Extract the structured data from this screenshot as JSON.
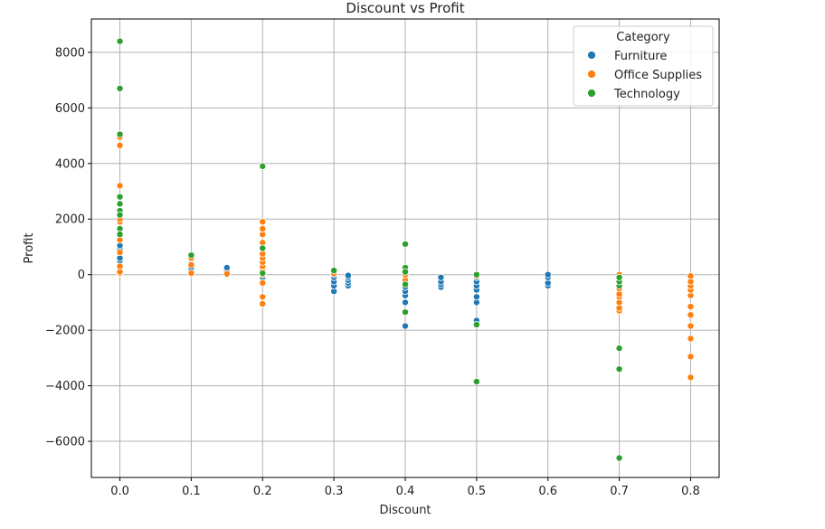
{
  "chart_data": {
    "type": "scatter",
    "title": "Discount vs Profit",
    "xlabel": "Discount",
    "ylabel": "Profit",
    "xlim": [
      -0.04,
      0.84
    ],
    "ylim": [
      -7300,
      9200
    ],
    "x_ticks": [
      "0.0",
      "0.1",
      "0.2",
      "0.3",
      "0.4",
      "0.5",
      "0.6",
      "0.7",
      "0.8"
    ],
    "x_tick_values": [
      0.0,
      0.1,
      0.2,
      0.3,
      0.4,
      0.5,
      0.6,
      0.7,
      0.8
    ],
    "y_ticks": [
      "8000",
      "6000",
      "4000",
      "2000",
      "0",
      "−2000",
      "−4000",
      "−6000"
    ],
    "y_tick_values": [
      8000,
      6000,
      4000,
      2000,
      0,
      -2000,
      -4000,
      -6000
    ],
    "grid": true,
    "legend": {
      "title": "Category",
      "placement": "top-right"
    },
    "series": [
      {
        "name": "Furniture",
        "color": "#1f77b4",
        "points": [
          [
            0.0,
            50
          ],
          [
            0.0,
            150
          ],
          [
            0.0,
            300
          ],
          [
            0.0,
            500
          ],
          [
            0.0,
            600
          ],
          [
            0.0,
            900
          ],
          [
            0.0,
            1050
          ],
          [
            0.0,
            1250
          ],
          [
            0.0,
            1400
          ],
          [
            0.1,
            30
          ],
          [
            0.1,
            80
          ],
          [
            0.1,
            150
          ],
          [
            0.1,
            250
          ],
          [
            0.1,
            350
          ],
          [
            0.1,
            450
          ],
          [
            0.1,
            550
          ],
          [
            0.15,
            0
          ],
          [
            0.15,
            50
          ],
          [
            0.15,
            100
          ],
          [
            0.15,
            150
          ],
          [
            0.15,
            250
          ],
          [
            0.2,
            -100
          ],
          [
            0.2,
            0
          ],
          [
            0.2,
            100
          ],
          [
            0.2,
            200
          ],
          [
            0.3,
            -600
          ],
          [
            0.3,
            -400
          ],
          [
            0.3,
            -250
          ],
          [
            0.3,
            -100
          ],
          [
            0.3,
            0
          ],
          [
            0.32,
            -400
          ],
          [
            0.32,
            -300
          ],
          [
            0.32,
            -200
          ],
          [
            0.32,
            -100
          ],
          [
            0.32,
            -30
          ],
          [
            0.4,
            -1850
          ],
          [
            0.4,
            -1000
          ],
          [
            0.4,
            -750
          ],
          [
            0.4,
            -600
          ],
          [
            0.4,
            -450
          ],
          [
            0.4,
            -300
          ],
          [
            0.4,
            -150
          ],
          [
            0.4,
            0
          ],
          [
            0.45,
            -450
          ],
          [
            0.45,
            -350
          ],
          [
            0.45,
            -250
          ],
          [
            0.45,
            -100
          ],
          [
            0.5,
            -1650
          ],
          [
            0.5,
            -1000
          ],
          [
            0.5,
            -800
          ],
          [
            0.5,
            -550
          ],
          [
            0.5,
            -400
          ],
          [
            0.5,
            -250
          ],
          [
            0.5,
            -100
          ],
          [
            0.6,
            -400
          ],
          [
            0.6,
            -300
          ],
          [
            0.6,
            -100
          ],
          [
            0.6,
            0
          ],
          [
            0.7,
            -450
          ],
          [
            0.7,
            -300
          ],
          [
            0.7,
            -150
          ],
          [
            0.8,
            -450
          ],
          [
            0.8,
            -300
          ],
          [
            0.8,
            -200
          ]
        ]
      },
      {
        "name": "Office Supplies",
        "color": "#ff7f0e",
        "points": [
          [
            0.0,
            50
          ],
          [
            0.0,
            100
          ],
          [
            0.0,
            300
          ],
          [
            0.0,
            800
          ],
          [
            0.0,
            1250
          ],
          [
            0.0,
            1600
          ],
          [
            0.0,
            1900
          ],
          [
            0.0,
            2000
          ],
          [
            0.0,
            3200
          ],
          [
            0.0,
            4650
          ],
          [
            0.0,
            4950
          ],
          [
            0.1,
            50
          ],
          [
            0.1,
            350
          ],
          [
            0.1,
            600
          ],
          [
            0.15,
            30
          ],
          [
            0.2,
            -1050
          ],
          [
            0.2,
            -800
          ],
          [
            0.2,
            -300
          ],
          [
            0.2,
            0
          ],
          [
            0.2,
            150
          ],
          [
            0.2,
            300
          ],
          [
            0.2,
            450
          ],
          [
            0.2,
            600
          ],
          [
            0.2,
            750
          ],
          [
            0.2,
            950
          ],
          [
            0.2,
            1150
          ],
          [
            0.2,
            1450
          ],
          [
            0.2,
            1650
          ],
          [
            0.2,
            1900
          ],
          [
            0.3,
            50
          ],
          [
            0.4,
            -200
          ],
          [
            0.4,
            0
          ],
          [
            0.5,
            -50
          ],
          [
            0.7,
            -1300
          ],
          [
            0.7,
            -1200
          ],
          [
            0.7,
            -1000
          ],
          [
            0.7,
            -800
          ],
          [
            0.7,
            -700
          ],
          [
            0.7,
            -500
          ],
          [
            0.7,
            -350
          ],
          [
            0.7,
            -200
          ],
          [
            0.7,
            0
          ],
          [
            0.8,
            -3700
          ],
          [
            0.8,
            -2950
          ],
          [
            0.8,
            -2300
          ],
          [
            0.8,
            -1850
          ],
          [
            0.8,
            -1450
          ],
          [
            0.8,
            -1150
          ],
          [
            0.8,
            -750
          ],
          [
            0.8,
            -550
          ],
          [
            0.8,
            -400
          ],
          [
            0.8,
            -250
          ],
          [
            0.8,
            -50
          ]
        ]
      },
      {
        "name": "Technology",
        "color": "#2ca02c",
        "points": [
          [
            0.0,
            8400
          ],
          [
            0.0,
            6700
          ],
          [
            0.0,
            5050
          ],
          [
            0.0,
            2800
          ],
          [
            0.0,
            2550
          ],
          [
            0.0,
            2300
          ],
          [
            0.0,
            2150
          ],
          [
            0.0,
            1650
          ],
          [
            0.0,
            1450
          ],
          [
            0.1,
            700
          ],
          [
            0.2,
            3900
          ],
          [
            0.2,
            950
          ],
          [
            0.2,
            50
          ],
          [
            0.3,
            150
          ],
          [
            0.4,
            1100
          ],
          [
            0.4,
            250
          ],
          [
            0.4,
            100
          ],
          [
            0.4,
            -350
          ],
          [
            0.4,
            -1350
          ],
          [
            0.5,
            0
          ],
          [
            0.5,
            -1800
          ],
          [
            0.5,
            -3850
          ],
          [
            0.7,
            -6600
          ],
          [
            0.7,
            -3400
          ],
          [
            0.7,
            -2650
          ],
          [
            0.7,
            -400
          ],
          [
            0.7,
            -250
          ],
          [
            0.7,
            -100
          ]
        ]
      }
    ]
  }
}
